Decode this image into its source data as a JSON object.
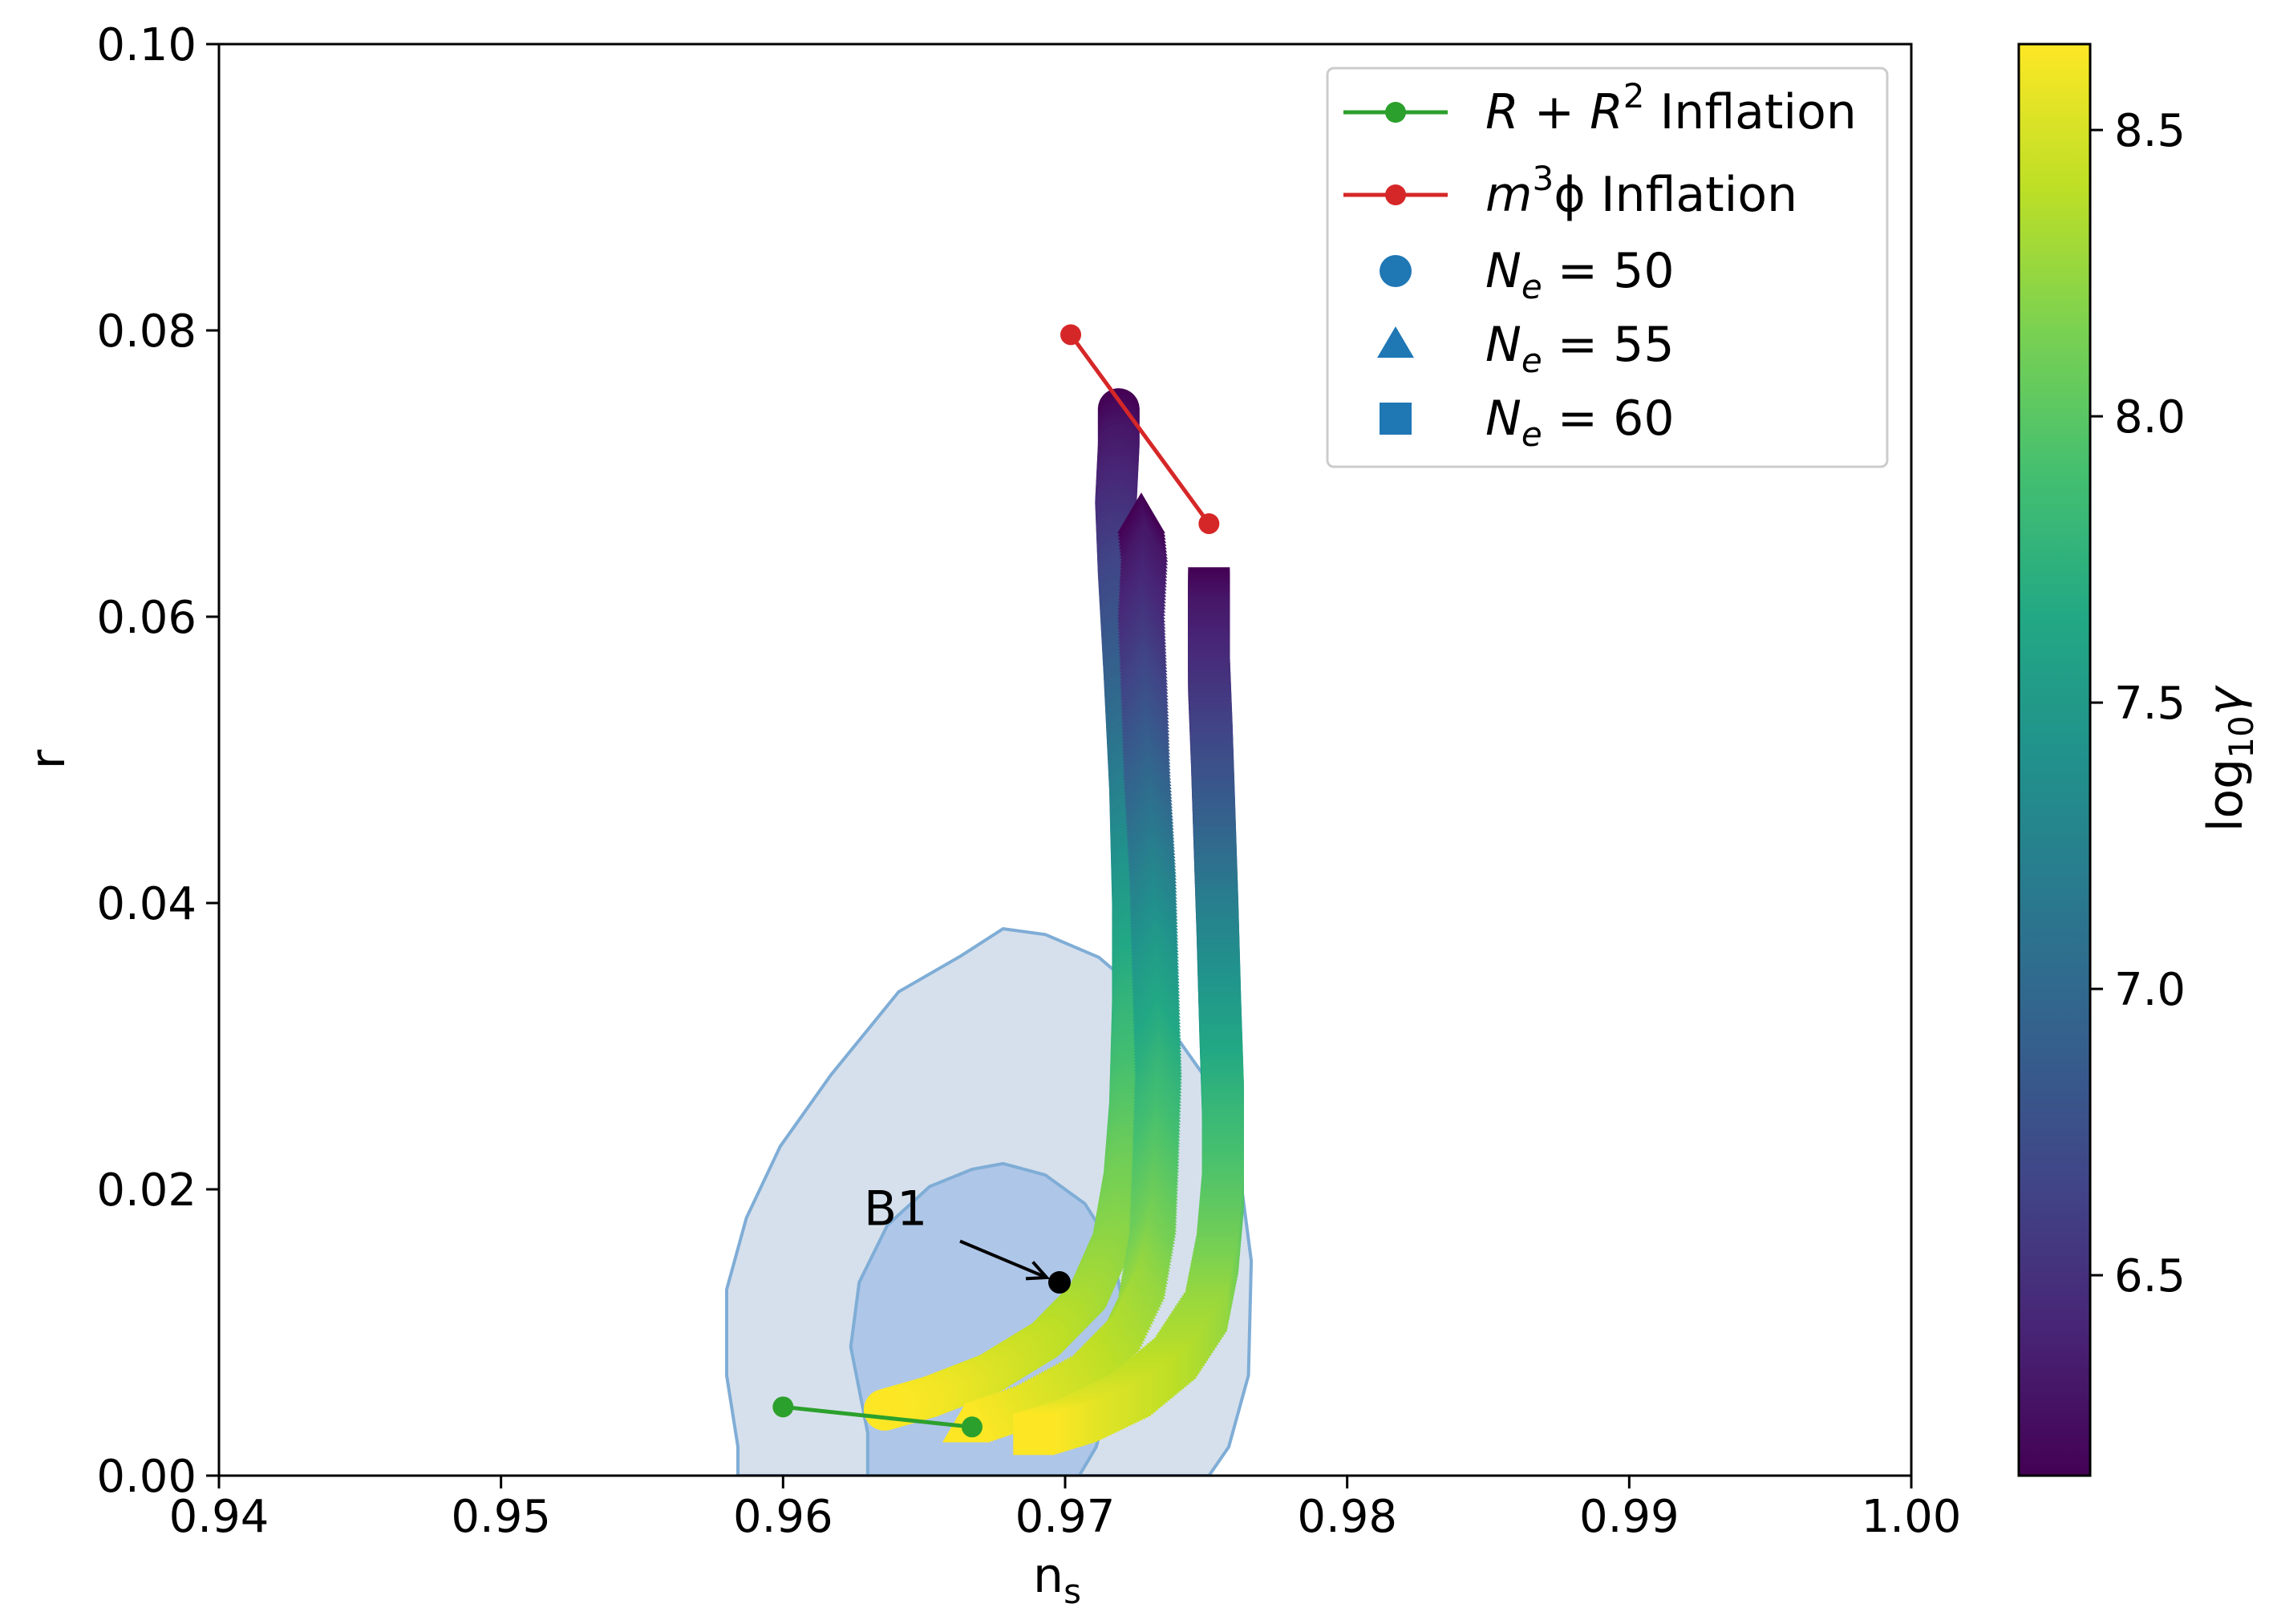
{
  "chart_data": {
    "type": "scatter",
    "xlabel": "n",
    "xlabel_sub": "s",
    "ylabel": "r",
    "xlim": [
      0.94,
      1.0
    ],
    "ylim": [
      0.0,
      0.1
    ],
    "xticks": [
      "0.94",
      "0.95",
      "0.96",
      "0.97",
      "0.98",
      "0.99",
      "1.00"
    ],
    "xtick_values": [
      0.94,
      0.95,
      0.96,
      0.97,
      0.98,
      0.99,
      1.0
    ],
    "yticks": [
      "0.00",
      "0.02",
      "0.04",
      "0.06",
      "0.08",
      "0.10"
    ],
    "ytick_values": [
      0.0,
      0.02,
      0.04,
      0.06,
      0.08,
      0.1
    ],
    "grid": false,
    "legend_position": "top-right",
    "colorbar": {
      "label_base": "log",
      "label_sub": "10",
      "label_var": "γ",
      "colormap": "viridis",
      "range": [
        6.15,
        8.65
      ],
      "ticks": [
        "6.5",
        "7.0",
        "7.5",
        "8.0",
        "8.5"
      ],
      "tick_values": [
        6.5,
        7.0,
        7.5,
        8.0,
        8.5
      ]
    },
    "contours": {
      "color_outer": "#d6e0ec",
      "color_inner": "#aec6e8",
      "edge_color": "#7fadd6",
      "outer": [
        [
          0.9584,
          0.0
        ],
        [
          0.9584,
          0.002
        ],
        [
          0.958,
          0.007
        ],
        [
          0.958,
          0.013
        ],
        [
          0.9587,
          0.018
        ],
        [
          0.9599,
          0.023
        ],
        [
          0.9617,
          0.028
        ],
        [
          0.9641,
          0.0338
        ],
        [
          0.9663,
          0.0363
        ],
        [
          0.9678,
          0.0382
        ],
        [
          0.9693,
          0.0378
        ],
        [
          0.9712,
          0.0362
        ],
        [
          0.9731,
          0.033
        ],
        [
          0.9749,
          0.028
        ],
        [
          0.9761,
          0.0225
        ],
        [
          0.9766,
          0.015
        ],
        [
          0.9765,
          0.007
        ],
        [
          0.9758,
          0.002
        ],
        [
          0.9751,
          0.0
        ]
      ],
      "inner": [
        [
          0.963,
          0.0
        ],
        [
          0.963,
          0.003
        ],
        [
          0.9624,
          0.009
        ],
        [
          0.9627,
          0.0135
        ],
        [
          0.9637,
          0.0175
        ],
        [
          0.9652,
          0.0202
        ],
        [
          0.9667,
          0.0214
        ],
        [
          0.9678,
          0.0218
        ],
        [
          0.9693,
          0.021
        ],
        [
          0.9707,
          0.019
        ],
        [
          0.9716,
          0.0162
        ],
        [
          0.972,
          0.0125
        ],
        [
          0.9718,
          0.007
        ],
        [
          0.9711,
          0.002
        ],
        [
          0.9705,
          0.0
        ]
      ]
    },
    "series": [
      {
        "name": "N_e = 50",
        "marker": "circle",
        "marker_size": 26,
        "points": [
          [
            0.9719,
            0.0745,
            6.15
          ],
          [
            0.9719,
            0.072,
            6.3
          ],
          [
            0.9718,
            0.068,
            6.45
          ],
          [
            0.9719,
            0.063,
            6.65
          ],
          [
            0.9721,
            0.056,
            6.9
          ],
          [
            0.9723,
            0.048,
            7.2
          ],
          [
            0.9724,
            0.04,
            7.5
          ],
          [
            0.9724,
            0.033,
            7.75
          ],
          [
            0.9723,
            0.026,
            7.95
          ],
          [
            0.9721,
            0.021,
            8.1
          ],
          [
            0.9717,
            0.0165,
            8.2
          ],
          [
            0.9708,
            0.0125,
            8.3
          ],
          [
            0.9693,
            0.0095,
            8.4
          ],
          [
            0.9673,
            0.0071,
            8.5
          ],
          [
            0.9652,
            0.0055,
            8.6
          ],
          [
            0.9636,
            0.0046,
            8.65
          ]
        ]
      },
      {
        "name": "N_e = 55",
        "marker": "triangle",
        "marker_size": 26,
        "points": [
          [
            0.9727,
            0.067,
            6.15
          ],
          [
            0.9728,
            0.065,
            6.3
          ],
          [
            0.9727,
            0.061,
            6.45
          ],
          [
            0.9728,
            0.056,
            6.65
          ],
          [
            0.9729,
            0.05,
            6.9
          ],
          [
            0.9731,
            0.043,
            7.2
          ],
          [
            0.9732,
            0.036,
            7.5
          ],
          [
            0.9733,
            0.029,
            7.75
          ],
          [
            0.9732,
            0.023,
            7.95
          ],
          [
            0.9731,
            0.018,
            8.1
          ],
          [
            0.9727,
            0.0135,
            8.25
          ],
          [
            0.9718,
            0.0098,
            8.35
          ],
          [
            0.9703,
            0.0068,
            8.45
          ],
          [
            0.9683,
            0.0047,
            8.55
          ],
          [
            0.9665,
            0.0035,
            8.65
          ]
        ]
      },
      {
        "name": "N_e = 60",
        "marker": "square",
        "marker_size": 26,
        "points": [
          [
            0.9751,
            0.062,
            6.15
          ],
          [
            0.9751,
            0.06,
            6.3
          ],
          [
            0.9751,
            0.056,
            6.45
          ],
          [
            0.9752,
            0.051,
            6.65
          ],
          [
            0.9753,
            0.045,
            6.9
          ],
          [
            0.9754,
            0.039,
            7.2
          ],
          [
            0.9755,
            0.032,
            7.5
          ],
          [
            0.9756,
            0.026,
            7.75
          ],
          [
            0.9756,
            0.02,
            7.95
          ],
          [
            0.9754,
            0.0155,
            8.1
          ],
          [
            0.975,
            0.0115,
            8.25
          ],
          [
            0.9739,
            0.0082,
            8.35
          ],
          [
            0.9723,
            0.0056,
            8.45
          ],
          [
            0.9704,
            0.0038,
            8.55
          ],
          [
            0.9689,
            0.0029,
            8.65
          ]
        ]
      }
    ],
    "lines": [
      {
        "name": "R + R² Inflation",
        "color": "#2ca02c",
        "points": [
          [
            0.96,
            0.0048
          ],
          [
            0.9667,
            0.0034
          ]
        ]
      },
      {
        "name": "m³ϕ Inflation",
        "color": "#d62728",
        "points": [
          [
            0.9702,
            0.0797
          ],
          [
            0.9751,
            0.0665
          ]
        ]
      }
    ],
    "annotation": {
      "text": "B1",
      "point": [
        0.9698,
        0.0135
      ],
      "text_position": [
        0.964,
        0.0175
      ]
    },
    "legend": [
      {
        "kind": "line",
        "color": "#2ca02c",
        "label_pre": "R + R",
        "label_sup": "2",
        "label_post": " Inflation"
      },
      {
        "kind": "line",
        "color": "#d62728",
        "label_pre": "m",
        "label_sup": "3",
        "label_post": "ϕ Inflation"
      },
      {
        "kind": "circle",
        "color": "#1f77b4",
        "label_pre": "N",
        "label_sub": "e",
        "label_post": " = 50"
      },
      {
        "kind": "triangle",
        "color": "#1f77b4",
        "label_pre": "N",
        "label_sub": "e",
        "label_post": " = 55"
      },
      {
        "kind": "square",
        "color": "#1f77b4",
        "label_pre": "N",
        "label_sub": "e",
        "label_post": " = 60"
      }
    ]
  }
}
